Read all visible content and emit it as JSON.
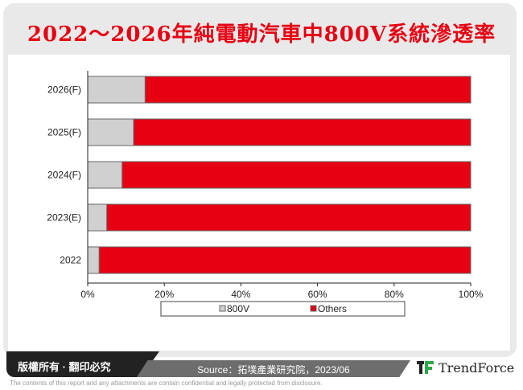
{
  "title": "2022～2026年純電動汽車中800V系統滲透率",
  "chart_data": {
    "type": "bar",
    "orientation": "horizontal",
    "stacked": "percent",
    "categories": [
      "2026(F)",
      "2025(F)",
      "2024(F)",
      "2023(E)",
      "2022"
    ],
    "series": [
      {
        "name": "800V",
        "values": [
          15,
          12,
          9,
          5,
          3
        ],
        "color": "#d0d0d0"
      },
      {
        "name": "Others",
        "values": [
          85,
          88,
          91,
          95,
          97
        ],
        "color": "#e60012"
      }
    ],
    "xlim": [
      0,
      100
    ],
    "xticks": [
      "0%",
      "20%",
      "40%",
      "60%",
      "80%",
      "100%"
    ],
    "legend": "bottom",
    "grid": false
  },
  "footer": {
    "copyright": "版權所有 · 翻印必究",
    "source": "Source：拓墣產業研究院，2023/06",
    "logo": "TrendForce",
    "disclaimer": "The contents of this report and any attachments are contain confidential and legally protected from disclosure."
  }
}
